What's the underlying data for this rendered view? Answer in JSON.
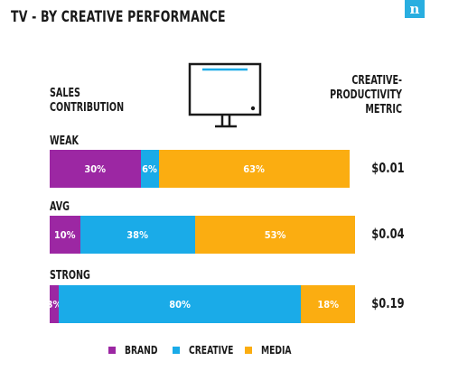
{
  "header": {
    "title": "TV - BY CREATIVE PERFORMANCE",
    "logo_letter": "n"
  },
  "labels": {
    "left_line1": "SALES",
    "left_line2": "CONTRIBUTION",
    "right_line1": "CREATIVE-",
    "right_line2": "PRODUCTIVITY",
    "right_line3": "METRIC"
  },
  "colors": {
    "brand": "#9c27a3",
    "creative": "#1aabe8",
    "media": "#fbad11",
    "logo": "#29aee0"
  },
  "chart_data": {
    "type": "bar",
    "orientation": "horizontal",
    "stacked": true,
    "categories": [
      "WEAK",
      "AVG",
      "STRONG"
    ],
    "series": [
      {
        "name": "BRAND",
        "values": [
          30,
          10,
          3
        ],
        "labels": [
          "30%",
          "10%",
          "3%"
        ]
      },
      {
        "name": "CREATIVE",
        "values": [
          6,
          38,
          80
        ],
        "labels": [
          "6%",
          "38%",
          "80%"
        ]
      },
      {
        "name": "MEDIA",
        "values": [
          63,
          53,
          18
        ],
        "labels": [
          "63%",
          "53%",
          "18%"
        ]
      }
    ],
    "metric_values": [
      "$0.01",
      "$0.04",
      "$0.19"
    ],
    "legend": [
      "BRAND",
      "CREATIVE",
      "MEDIA"
    ],
    "legend_position": "bottom"
  }
}
